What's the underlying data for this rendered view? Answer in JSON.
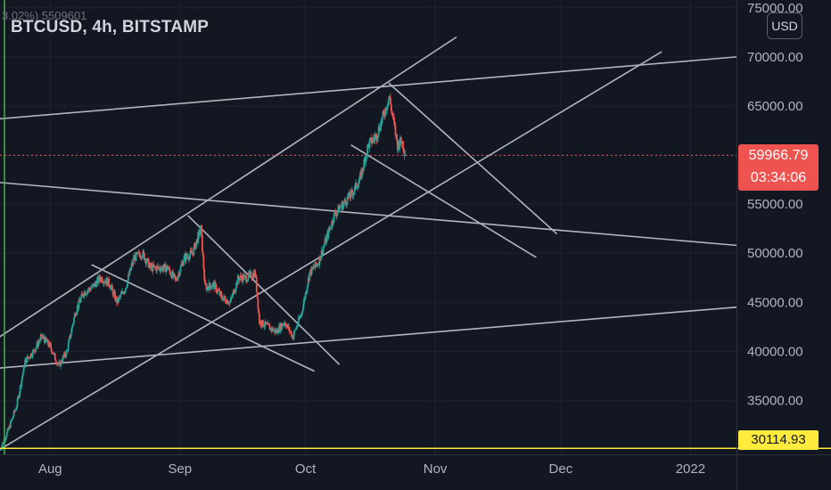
{
  "header": {
    "symbol": "BTCUSD, 4h, BITSTAMP",
    "ghost_text": "3.02%) 5509601"
  },
  "currency_button": "USD",
  "price_badge": {
    "price": "59966.79",
    "countdown": "03:34:06",
    "color": "#ef5350"
  },
  "level_badge": {
    "price": "30114.93",
    "color": "#ffeb3b"
  },
  "colors": {
    "up": "#26a69a",
    "down": "#ef5350",
    "trendline": "#b2b5be",
    "background": "#131722",
    "text": "#d1d4dc"
  },
  "chart_data": {
    "type": "candlestick",
    "symbol": "BTCUSD",
    "interval": "4h",
    "exchange": "BITSTAMP",
    "x_tick_labels": [
      "Aug",
      "Sep",
      "Oct",
      "Nov",
      "Dec",
      "2022"
    ],
    "x_ticks": [
      "2021-08-01",
      "2021-09-01",
      "2021-10-01",
      "2021-11-01",
      "2021-12-01",
      "2022-01-01"
    ],
    "xlim": [
      "2021-07-20",
      "2022-01-12"
    ],
    "y_tick_labels": [
      "35000.00",
      "40000.00",
      "45000.00",
      "50000.00",
      "55000.00",
      "60000.00",
      "65000.00",
      "70000.00",
      "75000.00"
    ],
    "ylim": [
      29500,
      75800
    ],
    "last_price": 59966.79,
    "horizontal_level": 30114.93,
    "price_path": [
      [
        "2021-07-20",
        30000
      ],
      [
        "2021-07-22",
        32000
      ],
      [
        "2021-07-24",
        34500
      ],
      [
        "2021-07-26",
        39000
      ],
      [
        "2021-07-28",
        40000
      ],
      [
        "2021-07-30",
        41500
      ],
      [
        "2021-08-01",
        40500
      ],
      [
        "2021-08-03",
        38500
      ],
      [
        "2021-08-05",
        40000
      ],
      [
        "2021-08-07",
        44000
      ],
      [
        "2021-08-09",
        46000
      ],
      [
        "2021-08-11",
        46500
      ],
      [
        "2021-08-13",
        47500
      ],
      [
        "2021-08-15",
        47000
      ],
      [
        "2021-08-17",
        45000
      ],
      [
        "2021-08-19",
        46500
      ],
      [
        "2021-08-21",
        49500
      ],
      [
        "2021-08-23",
        50000
      ],
      [
        "2021-08-25",
        48500
      ],
      [
        "2021-08-27",
        48500
      ],
      [
        "2021-08-29",
        48500
      ],
      [
        "2021-08-31",
        47200
      ],
      [
        "2021-09-02",
        49500
      ],
      [
        "2021-09-04",
        50000
      ],
      [
        "2021-09-06",
        52500
      ],
      [
        "2021-09-07",
        46500
      ],
      [
        "2021-09-09",
        46800
      ],
      [
        "2021-09-11",
        45500
      ],
      [
        "2021-09-13",
        45000
      ],
      [
        "2021-09-15",
        47500
      ],
      [
        "2021-09-17",
        47500
      ],
      [
        "2021-09-19",
        48000
      ],
      [
        "2021-09-20",
        43000
      ],
      [
        "2021-09-22",
        42500
      ],
      [
        "2021-09-24",
        42000
      ],
      [
        "2021-09-26",
        43000
      ],
      [
        "2021-09-28",
        41500
      ],
      [
        "2021-09-30",
        43800
      ],
      [
        "2021-10-02",
        48000
      ],
      [
        "2021-10-04",
        49000
      ],
      [
        "2021-10-06",
        51500
      ],
      [
        "2021-10-08",
        54000
      ],
      [
        "2021-10-10",
        55000
      ],
      [
        "2021-10-12",
        56000
      ],
      [
        "2021-10-14",
        57500
      ],
      [
        "2021-10-16",
        61000
      ],
      [
        "2021-10-18",
        62000
      ],
      [
        "2021-10-20",
        64500
      ],
      [
        "2021-10-21",
        66000
      ],
      [
        "2021-10-22",
        63500
      ],
      [
        "2021-10-23",
        61000
      ],
      [
        "2021-10-24",
        61500
      ],
      [
        "2021-10-25",
        60000
      ]
    ],
    "trendlines": [
      {
        "name": "upper-channel",
        "from": [
          "2021-07-20",
          63700
        ],
        "to": [
          "2022-01-12",
          70000
        ]
      },
      {
        "name": "mid-falling-line",
        "from": [
          "2021-07-20",
          57200
        ],
        "to": [
          "2022-01-12",
          50800
        ]
      },
      {
        "name": "lower-channel",
        "from": [
          "2021-07-20",
          38300
        ],
        "to": [
          "2022-01-12",
          44500
        ]
      },
      {
        "name": "steep-channel-top",
        "from": [
          "2021-07-20",
          41500
        ],
        "to": [
          "2021-11-06",
          72000
        ]
      },
      {
        "name": "steep-channel-bottom",
        "from": [
          "2021-07-20",
          30000
        ],
        "to": [
          "2021-12-25",
          70500
        ]
      },
      {
        "name": "sep-descending-upper",
        "from": [
          "2021-09-03",
          53800
        ],
        "to": [
          "2021-10-09",
          38700
        ]
      },
      {
        "name": "aug-descending-lower",
        "from": [
          "2021-08-11",
          48800
        ],
        "to": [
          "2021-10-03",
          38000
        ]
      },
      {
        "name": "oct-descending-upper",
        "from": [
          "2021-10-21",
          67300
        ],
        "to": [
          "2021-11-30",
          52000
        ]
      },
      {
        "name": "oct-descending-lower",
        "from": [
          "2021-10-12",
          61000
        ],
        "to": [
          "2021-11-25",
          49600
        ]
      }
    ]
  }
}
